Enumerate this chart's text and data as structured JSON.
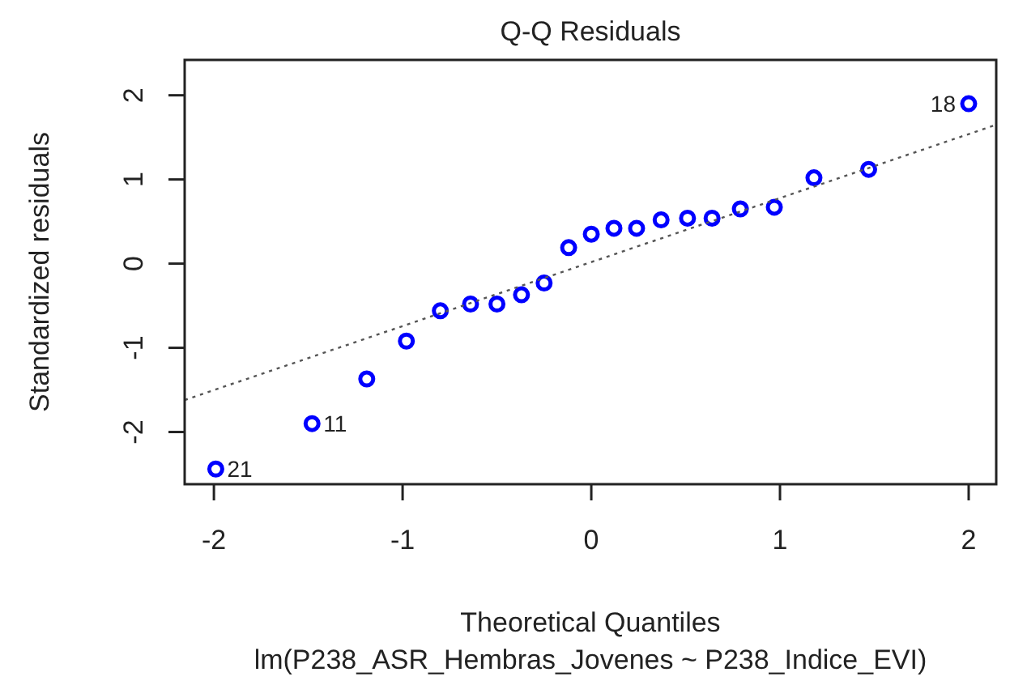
{
  "chart_data": {
    "type": "scatter",
    "title": "Q-Q Residuals",
    "subtitle": "lm(P238_ASR_Hembras_Jovenes ~ P238_Indice_EVI)",
    "xlabel": "Theoretical Quantiles",
    "ylabel": "Standardized residuals",
    "xlim": [
      -2.155,
      2.146
    ],
    "ylim": [
      -2.62,
      2.42
    ],
    "xticks": [
      -2,
      -1,
      0,
      1,
      2
    ],
    "yticks": [
      -2,
      -1,
      0,
      1,
      2
    ],
    "grid": false,
    "series": [
      {
        "marker": "circle",
        "color": "#0000ff",
        "x": [
          -1.99,
          -1.48,
          -1.19,
          -0.98,
          -0.8,
          -0.64,
          -0.5,
          -0.37,
          -0.25,
          -0.12,
          0,
          0.12,
          0.24,
          0.37,
          0.51,
          0.64,
          0.79,
          0.97,
          1.18,
          1.47,
          2.0
        ],
        "values": [
          -2.44,
          -1.9,
          -1.37,
          -0.92,
          -0.56,
          -0.48,
          -0.48,
          -0.37,
          -0.23,
          0.19,
          0.35,
          0.42,
          0.42,
          0.52,
          0.54,
          0.54,
          0.65,
          0.67,
          1.02,
          1.12,
          1.9
        ]
      },
      {
        "type": "line",
        "color": "#555555",
        "line_style": "dotted",
        "x": [
          -2.155,
          2.146
        ],
        "values": [
          -1.62,
          1.65
        ]
      }
    ],
    "annotations": [
      {
        "text": "21",
        "x": -1.99,
        "y": -2.44
      },
      {
        "text": "11",
        "x": -1.48,
        "y": -1.9
      },
      {
        "text": "18",
        "x": 2.0,
        "y": 1.9
      }
    ]
  }
}
